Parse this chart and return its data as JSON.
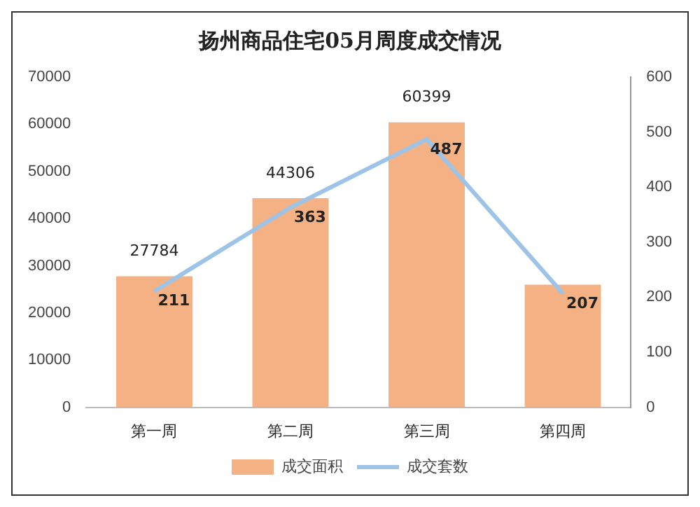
{
  "chart_data": {
    "type": "bar",
    "title": "扬州商品住宅05月周度成交情况",
    "categories": [
      "第一周",
      "第二周",
      "第三周",
      "第四周"
    ],
    "series": [
      {
        "name": "成交面积",
        "color": "#f4b183",
        "values": [
          27784,
          44306,
          60399,
          26000
        ],
        "value_labels": [
          "27784",
          "44306",
          "60399",
          null
        ]
      },
      {
        "name": "成交套数",
        "type": "line",
        "axis": "y2",
        "color": "#9dc3e6",
        "values": [
          211,
          363,
          487,
          207
        ],
        "value_labels": [
          "211",
          "363",
          "487",
          "207"
        ]
      }
    ],
    "ylim": [
      0,
      70000
    ],
    "yticks": [
      0,
      10000,
      20000,
      30000,
      40000,
      50000,
      60000,
      70000
    ],
    "y2lim": [
      0,
      600
    ],
    "y2ticks": [
      0,
      100,
      200,
      300,
      400,
      500,
      600
    ],
    "grid": false,
    "legend": "bottom",
    "marker": "none",
    "line_style": "solid"
  }
}
